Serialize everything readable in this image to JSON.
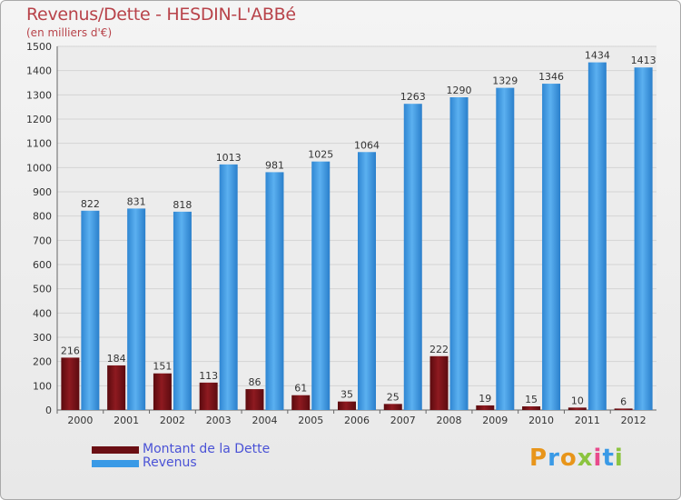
{
  "header": {
    "title": "Revenus/Dette - HESDIN-L'ABBé",
    "subtitle": "(en milliers d'€)"
  },
  "legend": {
    "items": [
      {
        "label": "Montant de la Dette",
        "color": "#6b0f14"
      },
      {
        "label": "Revenus",
        "color": "#3a9ae6"
      }
    ]
  },
  "logo": {
    "letters": [
      "P",
      "r",
      "o",
      "x",
      "i",
      "t",
      "i"
    ],
    "colors": [
      "#e8951a",
      "#3a9ae6",
      "#e8951a",
      "#8bc43f",
      "#e84a8c",
      "#3a9ae6",
      "#8bc43f"
    ]
  },
  "chart_data": {
    "type": "bar",
    "categories": [
      "2000",
      "2001",
      "2002",
      "2003",
      "2004",
      "2005",
      "2006",
      "2007",
      "2008",
      "2009",
      "2010",
      "2011",
      "2012"
    ],
    "series": [
      {
        "name": "Montant de la Dette",
        "color": "#7a1419",
        "values": [
          216,
          184,
          151,
          113,
          86,
          61,
          35,
          25,
          222,
          19,
          15,
          10,
          6
        ]
      },
      {
        "name": "Revenus",
        "color": "#3d9be5",
        "values": [
          822,
          831,
          818,
          1013,
          981,
          1025,
          1064,
          1263,
          1290,
          1329,
          1346,
          1434,
          1413
        ]
      }
    ],
    "ylim": [
      0,
      1500
    ],
    "yticks": [
      0,
      100,
      200,
      300,
      400,
      500,
      600,
      700,
      800,
      900,
      1000,
      1100,
      1200,
      1300,
      1400,
      1500
    ],
    "grid": true,
    "legend_position": "bottom-left"
  }
}
